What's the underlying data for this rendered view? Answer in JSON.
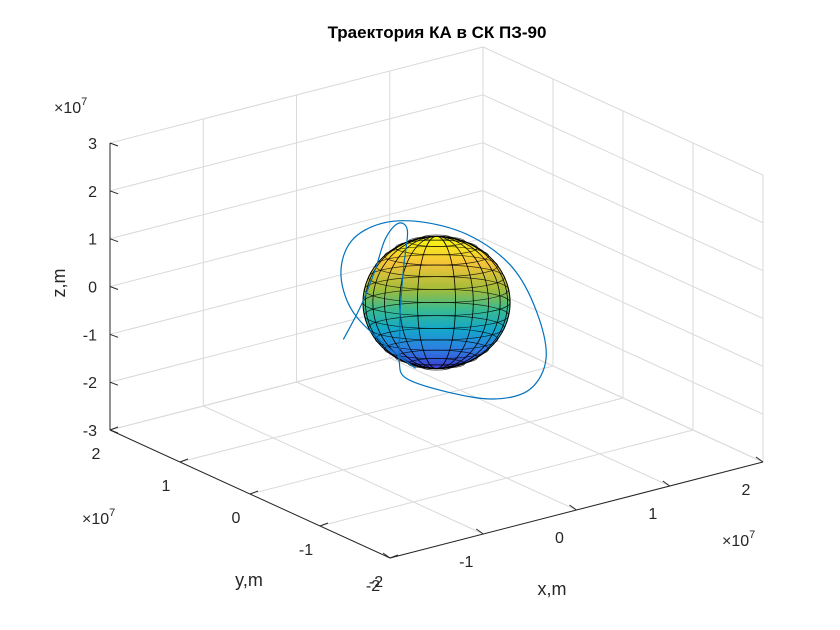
{
  "chart_data": {
    "type": "line3d",
    "title": "Траектория КА в СК ПЗ-90",
    "xlabel": "x,m",
    "ylabel": "y,m",
    "zlabel": "z,m",
    "xlim": [
      -2,
      2
    ],
    "ylim": [
      -2,
      2
    ],
    "zlim": [
      -3,
      3
    ],
    "x_ticks": [
      "-2",
      "-1",
      "0",
      "1",
      "2"
    ],
    "y_ticks": [
      "-2",
      "-1",
      "0",
      "1",
      "2"
    ],
    "z_ticks": [
      "-3",
      "-2",
      "-1",
      "0",
      "1",
      "2",
      "3"
    ],
    "x_multiplier": {
      "base": "×10",
      "exp": "7"
    },
    "y_multiplier": {
      "base": "×10",
      "exp": "7"
    },
    "z_multiplier": {
      "base": "×10",
      "exp": "7"
    },
    "grid": true,
    "colors": {
      "trajectory": "#0072bd",
      "axes": "#262626",
      "grid": "#d9d9d9"
    },
    "trajectory": {
      "units": "1e7 m",
      "points": [
        [
          -2.2,
          -1.6,
          1.4
        ],
        [
          -1.9,
          -1.45,
          1.85
        ],
        [
          -1.6,
          -1.25,
          2.3
        ],
        [
          -1.3,
          -1.0,
          2.65
        ],
        [
          -1.05,
          -0.85,
          2.75
        ],
        [
          -0.95,
          -0.85,
          2.55
        ],
        [
          -0.95,
          -0.8,
          1.8
        ],
        [
          -0.95,
          -0.75,
          0.9
        ],
        [
          -0.92,
          -0.7,
          0.2
        ],
        [
          -0.85,
          -0.6,
          -0.4
        ],
        [
          -0.7,
          -0.5,
          -0.9
        ],
        [
          -0.3,
          -0.55,
          -1.35
        ],
        [
          0.2,
          -0.55,
          -1.75
        ],
        [
          0.7,
          -0.4,
          -1.9
        ],
        [
          1.1,
          -0.1,
          -1.65
        ],
        [
          1.3,
          0.3,
          -1.05
        ],
        [
          1.3,
          0.65,
          -0.35
        ],
        [
          1.05,
          0.9,
          0.25
        ],
        [
          0.65,
          1.05,
          0.65
        ],
        [
          0.2,
          1.05,
          0.85
        ],
        [
          -0.2,
          0.95,
          0.75
        ],
        [
          -0.5,
          0.7,
          0.4
        ],
        [
          -0.65,
          0.35,
          -0.05
        ],
        [
          -0.6,
          0.0,
          -0.5
        ],
        [
          -0.45,
          -0.3,
          -0.95
        ]
      ]
    },
    "earth": {
      "equatorial_radius": 0.64,
      "polar_radius": 0.63,
      "units": "1e7 m",
      "colormap": "parula"
    }
  }
}
